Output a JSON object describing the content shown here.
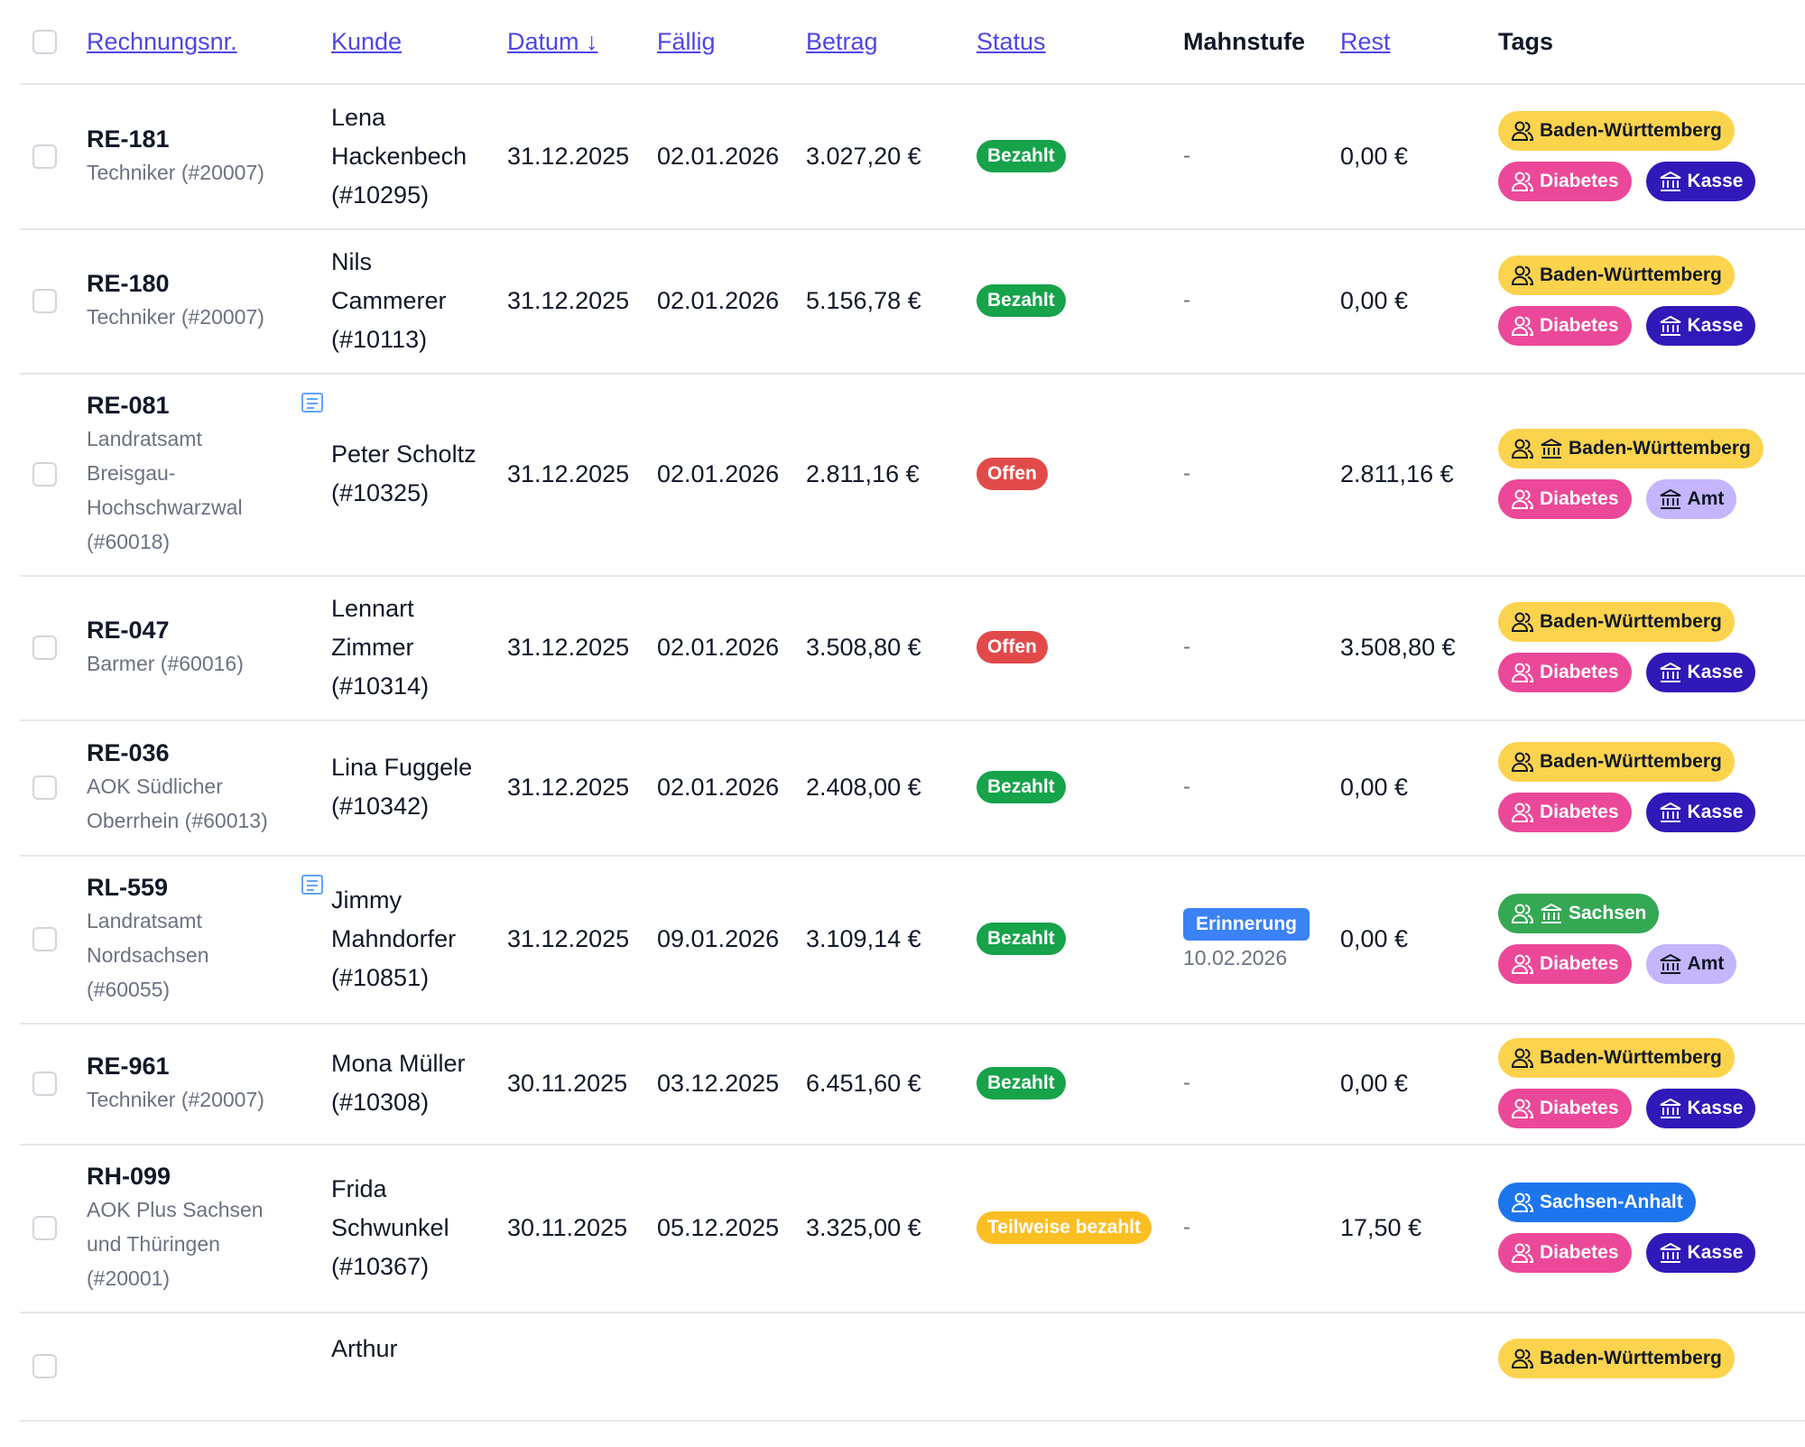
{
  "header": {
    "rechnungsnr": "Rechnungsnr.",
    "kunde": "Kunde",
    "datum": "Datum",
    "datum_sort": "↓",
    "faellig": "Fällig",
    "betrag": "Betrag",
    "status": "Status",
    "mahnstufe": "Mahnstufe",
    "rest": "Rest",
    "tags": "Tags"
  },
  "colors": {
    "Bezahlt": "#16a34a",
    "Offen": "#e24a4a",
    "Teilweise bezahlt": "#fbbf24",
    "yellow": "#fcd34d",
    "pink": "#ec4899",
    "navy": "#3019b8",
    "lavender": "#c4b5fd",
    "green": "#34a853",
    "blue": "#1d75ed"
  },
  "rows": [
    {
      "nr": "RE-181",
      "kt": [
        "Techniker (#20007)"
      ],
      "note": false,
      "kunde": [
        "Lena",
        "Hackenbech",
        "(#10295)"
      ],
      "datum": "31.12.2025",
      "faellig": "02.01.2026",
      "betrag": "3.027,20 €",
      "status": "Bezahlt",
      "mahn": "-",
      "mahn_date": "",
      "rest": "0,00 €",
      "tags": [
        [
          {
            "label": "Baden-Württemberg",
            "icons": [
              "people-icon"
            ],
            "bg": "#fcd34d",
            "fg": "#111827"
          }
        ],
        [
          {
            "label": "Diabetes",
            "icons": [
              "people-icon"
            ],
            "bg": "#ec4899",
            "fg": "#ffffff"
          },
          {
            "label": "Kasse",
            "icons": [
              "bank-icon"
            ],
            "bg": "#3019b8",
            "fg": "#ffffff"
          }
        ]
      ]
    },
    {
      "nr": "RE-180",
      "kt": [
        "Techniker (#20007)"
      ],
      "note": false,
      "kunde": [
        "Nils",
        "Cammerer",
        "(#10113)"
      ],
      "datum": "31.12.2025",
      "faellig": "02.01.2026",
      "betrag": "5.156,78 €",
      "status": "Bezahlt",
      "mahn": "-",
      "mahn_date": "",
      "rest": "0,00 €",
      "tags": [
        [
          {
            "label": "Baden-Württemberg",
            "icons": [
              "people-icon"
            ],
            "bg": "#fcd34d",
            "fg": "#111827"
          }
        ],
        [
          {
            "label": "Diabetes",
            "icons": [
              "people-icon"
            ],
            "bg": "#ec4899",
            "fg": "#ffffff"
          },
          {
            "label": "Kasse",
            "icons": [
              "bank-icon"
            ],
            "bg": "#3019b8",
            "fg": "#ffffff"
          }
        ]
      ]
    },
    {
      "nr": "RE-081",
      "kt": [
        "Landratsamt",
        "Breisgau-",
        "Hochschwarzwal",
        "(#60018)"
      ],
      "note": true,
      "kunde": [
        "Peter Scholtz",
        "(#10325)"
      ],
      "datum": "31.12.2025",
      "faellig": "02.01.2026",
      "betrag": "2.811,16 €",
      "status": "Offen",
      "mahn": "-",
      "mahn_date": "",
      "rest": "2.811,16 €",
      "tags": [
        [
          {
            "label": "Baden-Württemberg",
            "icons": [
              "people-icon",
              "bank-icon"
            ],
            "bg": "#fcd34d",
            "fg": "#111827"
          }
        ],
        [
          {
            "label": "Diabetes",
            "icons": [
              "people-icon"
            ],
            "bg": "#ec4899",
            "fg": "#ffffff"
          },
          {
            "label": "Amt",
            "icons": [
              "bank-icon"
            ],
            "bg": "#c4b5fd",
            "fg": "#111827"
          }
        ]
      ]
    },
    {
      "nr": "RE-047",
      "kt": [
        "Barmer (#60016)"
      ],
      "note": false,
      "kunde": [
        "Lennart",
        "Zimmer",
        "(#10314)"
      ],
      "datum": "31.12.2025",
      "faellig": "02.01.2026",
      "betrag": "3.508,80 €",
      "status": "Offen",
      "mahn": "-",
      "mahn_date": "",
      "rest": "3.508,80 €",
      "tags": [
        [
          {
            "label": "Baden-Württemberg",
            "icons": [
              "people-icon"
            ],
            "bg": "#fcd34d",
            "fg": "#111827"
          }
        ],
        [
          {
            "label": "Diabetes",
            "icons": [
              "people-icon"
            ],
            "bg": "#ec4899",
            "fg": "#ffffff"
          },
          {
            "label": "Kasse",
            "icons": [
              "bank-icon"
            ],
            "bg": "#3019b8",
            "fg": "#ffffff"
          }
        ]
      ]
    },
    {
      "nr": "RE-036",
      "kt": [
        "AOK Südlicher",
        "Oberrhein (#60013)"
      ],
      "note": false,
      "kunde": [
        "Lina Fuggele",
        "(#10342)"
      ],
      "datum": "31.12.2025",
      "faellig": "02.01.2026",
      "betrag": "2.408,00 €",
      "status": "Bezahlt",
      "mahn": "-",
      "mahn_date": "",
      "rest": "0,00 €",
      "tags": [
        [
          {
            "label": "Baden-Württemberg",
            "icons": [
              "people-icon"
            ],
            "bg": "#fcd34d",
            "fg": "#111827"
          }
        ],
        [
          {
            "label": "Diabetes",
            "icons": [
              "people-icon"
            ],
            "bg": "#ec4899",
            "fg": "#ffffff"
          },
          {
            "label": "Kasse",
            "icons": [
              "bank-icon"
            ],
            "bg": "#3019b8",
            "fg": "#ffffff"
          }
        ]
      ]
    },
    {
      "nr": "RL-559",
      "kt": [
        "Landratsamt",
        "Nordsachsen",
        "(#60055)"
      ],
      "note": true,
      "kunde": [
        "Jimmy",
        "Mahndorfer",
        "(#10851)"
      ],
      "datum": "31.12.2025",
      "faellig": "09.01.2026",
      "betrag": "3.109,14 €",
      "status": "Bezahlt",
      "mahn": "Erinnerung",
      "mahn_date": "10.02.2026",
      "rest": "0,00 €",
      "tags": [
        [
          {
            "label": "Sachsen",
            "icons": [
              "people-icon",
              "bank-icon"
            ],
            "bg": "#34a853",
            "fg": "#ffffff"
          }
        ],
        [
          {
            "label": "Diabetes",
            "icons": [
              "people-icon"
            ],
            "bg": "#ec4899",
            "fg": "#ffffff"
          },
          {
            "label": "Amt",
            "icons": [
              "bank-icon"
            ],
            "bg": "#c4b5fd",
            "fg": "#111827"
          }
        ]
      ]
    },
    {
      "nr": "RE-961",
      "kt": [
        "Techniker (#20007)"
      ],
      "note": false,
      "kunde": [
        "Mona Müller",
        "(#10308)"
      ],
      "datum": "30.11.2025",
      "faellig": "03.12.2025",
      "betrag": "6.451,60 €",
      "status": "Bezahlt",
      "mahn": "-",
      "mahn_date": "",
      "rest": "0,00 €",
      "tags": [
        [
          {
            "label": "Baden-Württemberg",
            "icons": [
              "people-icon"
            ],
            "bg": "#fcd34d",
            "fg": "#111827"
          }
        ],
        [
          {
            "label": "Diabetes",
            "icons": [
              "people-icon"
            ],
            "bg": "#ec4899",
            "fg": "#ffffff"
          },
          {
            "label": "Kasse",
            "icons": [
              "bank-icon"
            ],
            "bg": "#3019b8",
            "fg": "#ffffff"
          }
        ]
      ]
    },
    {
      "nr": "RH-099",
      "kt": [
        "AOK Plus Sachsen",
        "und Thüringen",
        "(#20001)"
      ],
      "note": false,
      "kunde": [
        "Frida",
        "Schwunkel",
        "(#10367)"
      ],
      "datum": "30.11.2025",
      "faellig": "05.12.2025",
      "betrag": "3.325,00 €",
      "status": "Teilweise bezahlt",
      "mahn": "-",
      "mahn_date": "",
      "rest": "17,50 €",
      "tags": [
        [
          {
            "label": "Sachsen-Anhalt",
            "icons": [
              "people-icon"
            ],
            "bg": "#1d75ed",
            "fg": "#ffffff"
          }
        ],
        [
          {
            "label": "Diabetes",
            "icons": [
              "people-icon"
            ],
            "bg": "#ec4899",
            "fg": "#ffffff"
          },
          {
            "label": "Kasse",
            "icons": [
              "bank-icon"
            ],
            "bg": "#3019b8",
            "fg": "#ffffff"
          }
        ]
      ]
    },
    {
      "nr": "",
      "kt": [],
      "note": false,
      "kunde": [
        "Arthur"
      ],
      "datum": "",
      "faellig": "",
      "betrag": "",
      "status": "",
      "mahn": "",
      "mahn_date": "",
      "rest": "",
      "tags": [
        [
          {
            "label": "Baden-Württemberg",
            "icons": [
              "people-icon"
            ],
            "bg": "#fcd34d",
            "fg": "#111827"
          }
        ]
      ]
    }
  ]
}
